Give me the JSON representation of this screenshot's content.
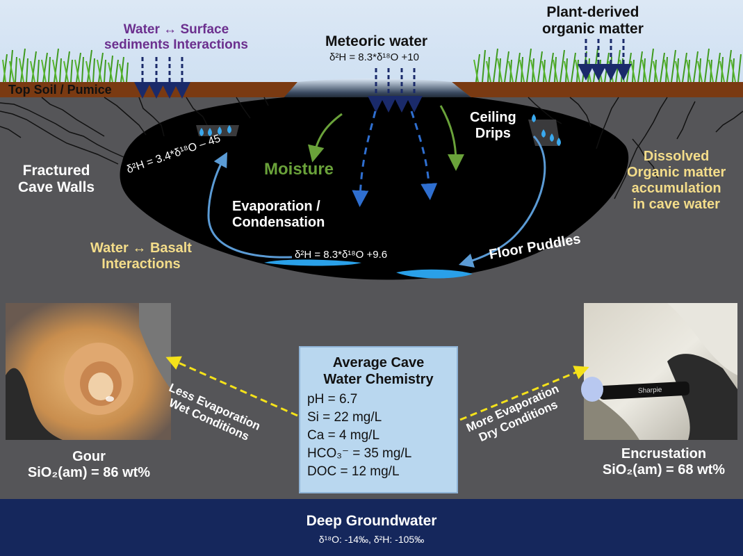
{
  "labels": {
    "water_surface_1": "Water ↔ Surface",
    "water_surface_2": "sediments Interactions",
    "top_soil": "Top Soil / Pumice",
    "meteoric_title": "Meteoric water",
    "meteoric_eq": "δ²H = 8.3*δ¹⁸O +10",
    "plant_1": "Plant-derived",
    "plant_2": "organic matter",
    "fractured_1": "Fractured",
    "fractured_2": "Cave Walls",
    "moisture": "Moisture",
    "ceiling_1": "Ceiling",
    "ceiling_2": "Drips",
    "dissolved_1": "Dissolved",
    "dissolved_2": "Organic matter",
    "dissolved_3": "accumulation",
    "dissolved_4": "in cave water",
    "evap_eq": "δ²H = 3.4*δ¹⁸O – 45",
    "evap_1": "Evaporation /",
    "evap_2": "Condensation",
    "basalt_1": "Water ↔ Basalt",
    "basalt_2": "Interactions",
    "puddle_eq": "δ²H = 8.3*δ¹⁸O +9.6",
    "floor_puddles": "Floor Puddles",
    "less_evap_1": "Less Evaporation",
    "less_evap_2": "Wet Conditions",
    "more_evap_1": "More Evaporation",
    "more_evap_2": "Dry Conditions"
  },
  "gour": {
    "name": "Gour",
    "formula": "SiO₂(am) = 86 wt%"
  },
  "encrustation": {
    "name": "Encrustation",
    "formula": "SiO₂(am) = 68 wt%",
    "marker_text": "Sharpie"
  },
  "chemistry": {
    "title_1": "Average Cave",
    "title_2": "Water Chemistry",
    "ph": "pH = 6.7",
    "si": "Si = 22 mg/L",
    "ca": "Ca = 4 mg/L",
    "hco3": "HCO₃⁻ = 35 mg/L",
    "doc": "DOC = 12 mg/L"
  },
  "groundwater": {
    "title": "Deep Groundwater",
    "isotopes": "δ¹⁸O: -14‰, δ²H: -105‰"
  },
  "colors": {
    "sky": "#dce8f5",
    "soil": "#7a3a12",
    "rock": "#555558",
    "cave": "#000000",
    "water": "#2aa0e8",
    "groundwater": "#15275c",
    "arrow_blue": "#5b9bd5",
    "arrow_green": "#6aa23a",
    "arrow_yellow": "#f5e21a"
  }
}
